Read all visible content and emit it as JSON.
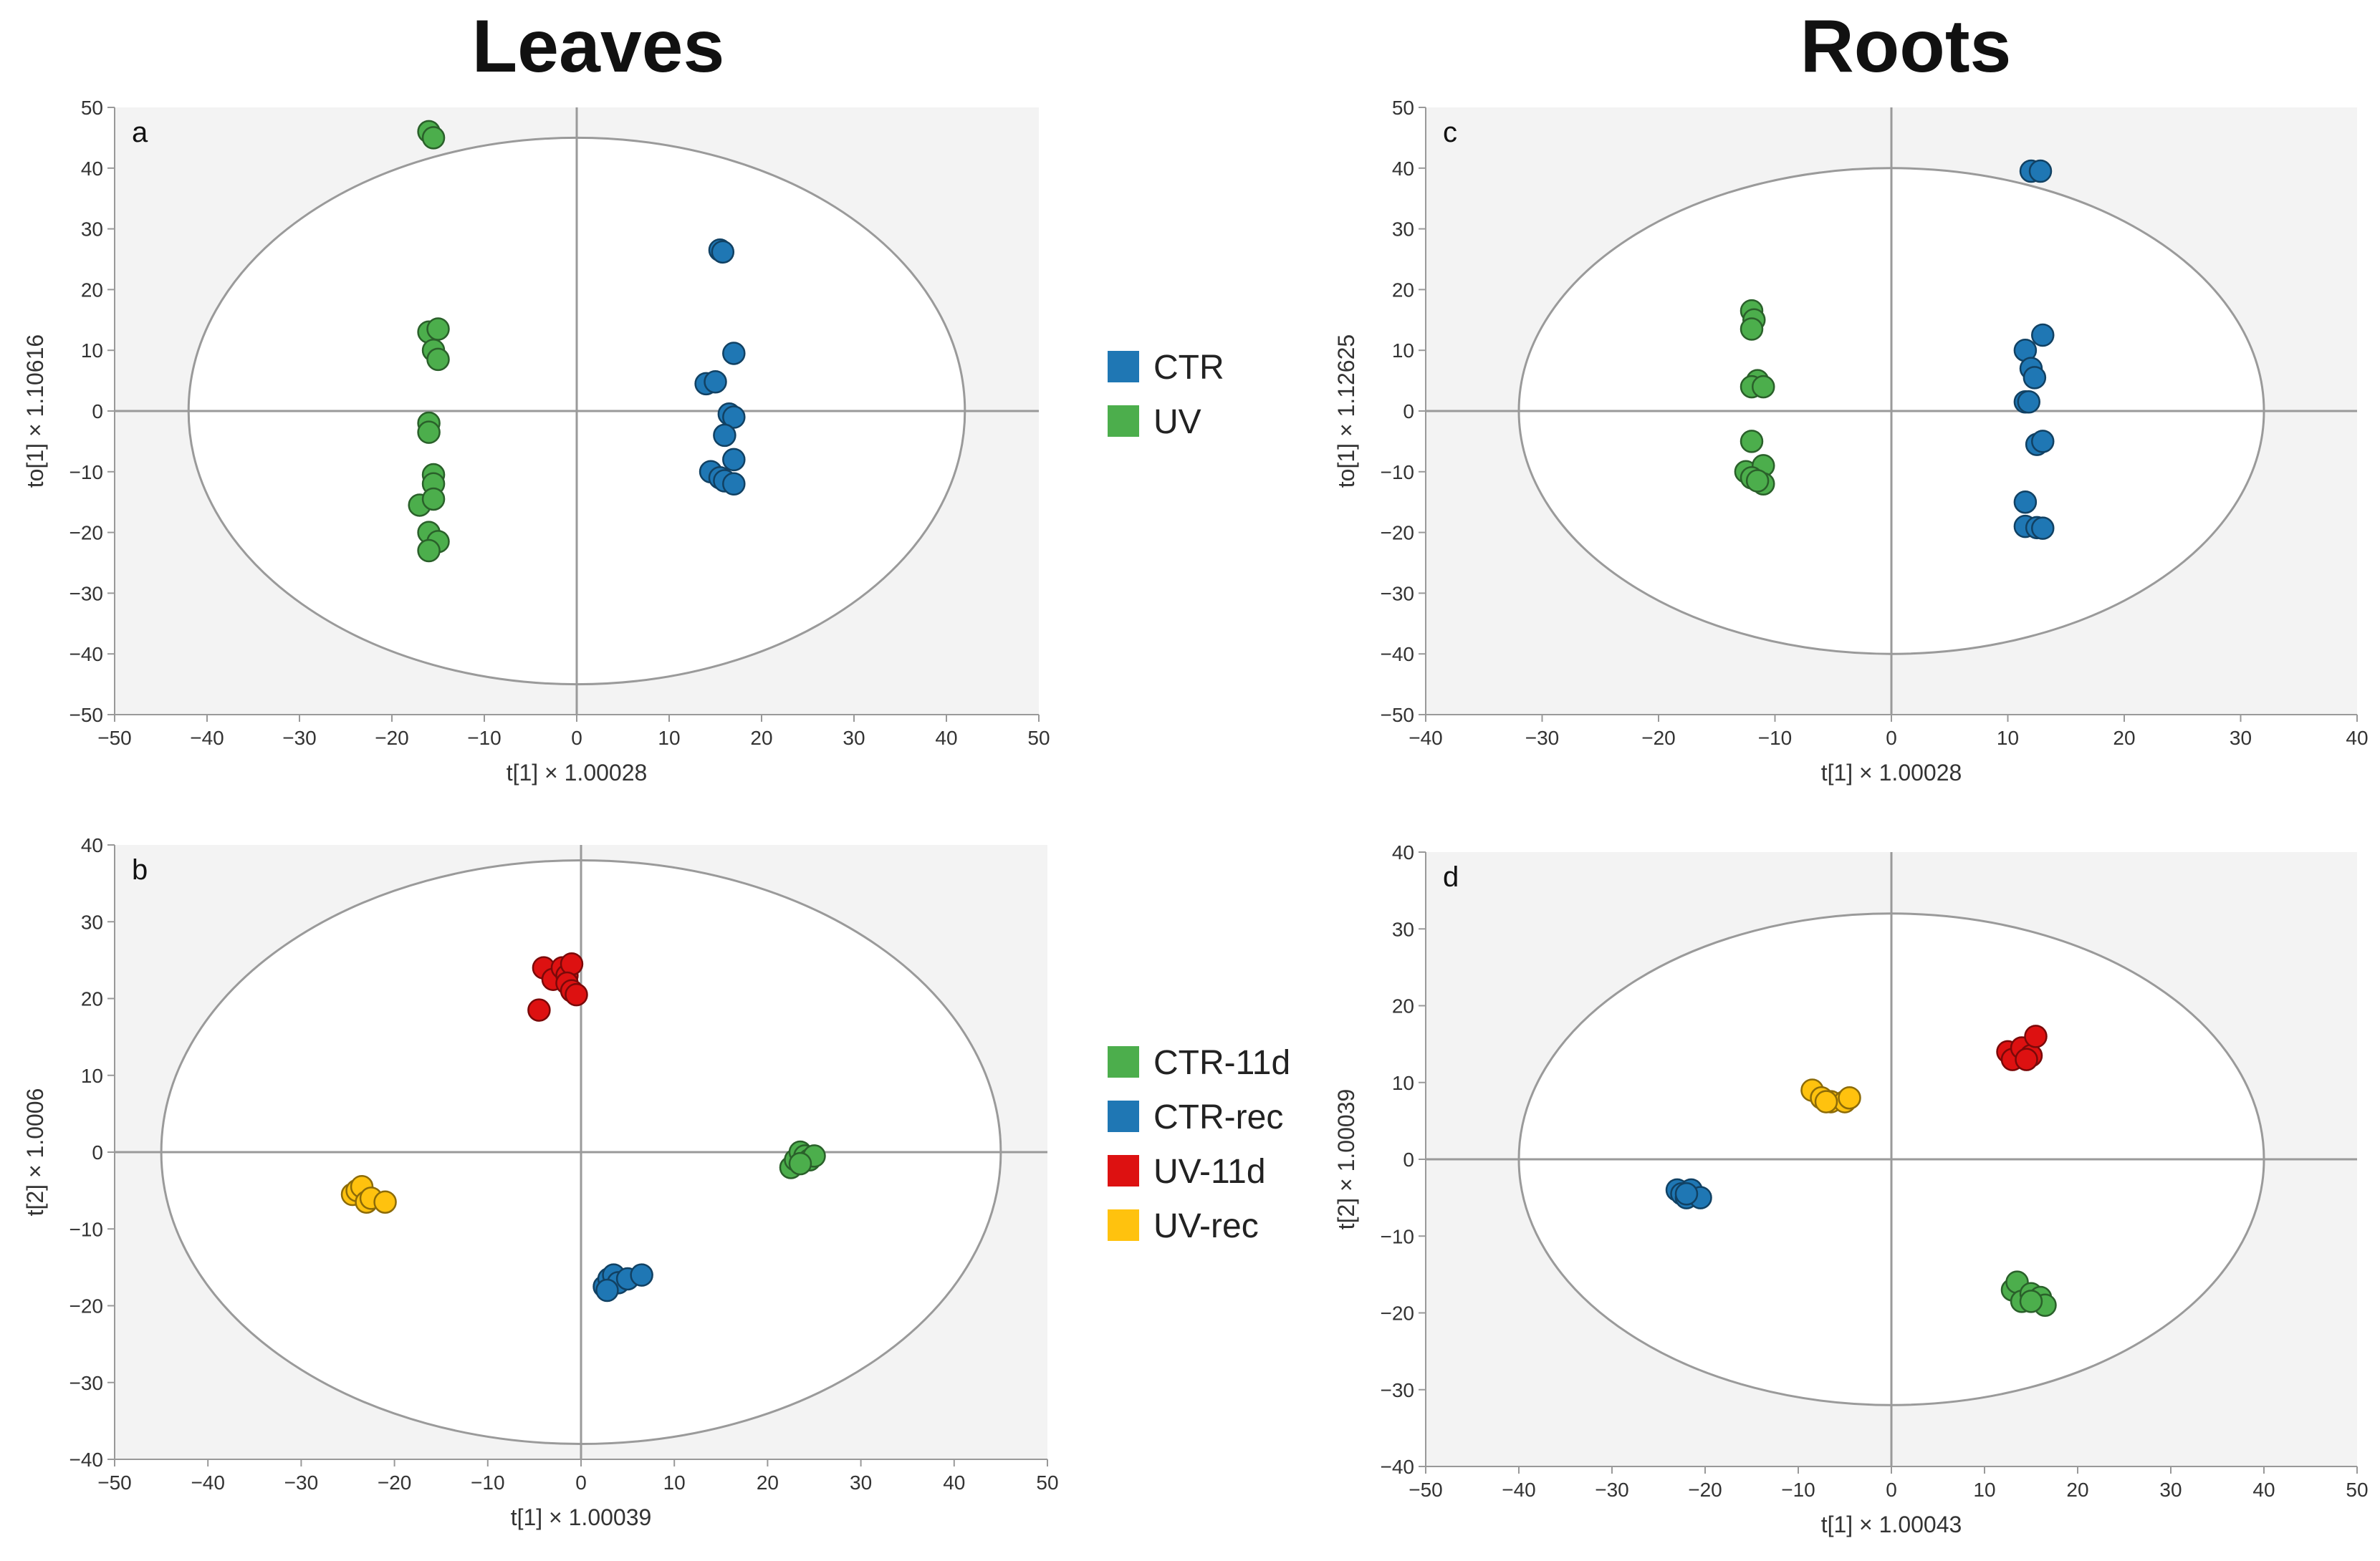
{
  "titles": {
    "left": "Leaves",
    "right": "Roots"
  },
  "legend_top": [
    {
      "label": "CTR",
      "color": "#1f77b4"
    },
    {
      "label": "UV",
      "color": "#4cae4c"
    }
  ],
  "legend_bottom": [
    {
      "label": "CTR-11d",
      "color": "#4cae4c"
    },
    {
      "label": "CTR-rec",
      "color": "#1f77b4"
    },
    {
      "label": "UV-11d",
      "color": "#dd1111"
    },
    {
      "label": "UV-rec",
      "color": "#ffc20e"
    }
  ],
  "chart_data": [
    {
      "panel": "a",
      "type": "scatter",
      "xlabel": "t[1] × 1.00028",
      "ylabel": "to[1] × 1.10616",
      "xlim": [
        -50,
        50
      ],
      "ylim": [
        -50,
        50
      ],
      "xticks": [
        -50,
        -40,
        -30,
        -20,
        -10,
        0,
        10,
        20,
        30,
        40,
        50
      ],
      "yticks": [
        -50,
        -40,
        -30,
        -20,
        -10,
        0,
        10,
        20,
        30,
        40,
        50
      ],
      "ellipse": {
        "rx": 42,
        "ry": 45
      },
      "series": [
        {
          "name": "UV",
          "color": "#4cae4c",
          "points": [
            [
              -16,
              46
            ],
            [
              -15.5,
              45
            ],
            [
              -16,
              13
            ],
            [
              -15,
              13.5
            ],
            [
              -15.5,
              10
            ],
            [
              -15,
              8.5
            ],
            [
              -16,
              -2
            ],
            [
              -16,
              -3.5
            ],
            [
              -15.5,
              -10.5
            ],
            [
              -15.5,
              -12
            ],
            [
              -17,
              -15.5
            ],
            [
              -15.5,
              -14.5
            ],
            [
              -16,
              -20
            ],
            [
              -15,
              -21.5
            ],
            [
              -16,
              -23
            ]
          ]
        },
        {
          "name": "CTR",
          "color": "#1f77b4",
          "points": [
            [
              15.5,
              26.5
            ],
            [
              15.8,
              26.2
            ],
            [
              17,
              9.5
            ],
            [
              14,
              4.5
            ],
            [
              15,
              4.8
            ],
            [
              16.5,
              -0.5
            ],
            [
              17,
              -1
            ],
            [
              16,
              -4
            ],
            [
              17,
              -8
            ],
            [
              14.5,
              -10
            ],
            [
              15.5,
              -11
            ],
            [
              16,
              -11.5
            ],
            [
              17,
              -12
            ]
          ]
        }
      ]
    },
    {
      "panel": "c",
      "type": "scatter",
      "xlabel": "t[1] × 1.00028",
      "ylabel": "to[1] × 1.12625",
      "xlim": [
        -40,
        40
      ],
      "ylim": [
        -50,
        50
      ],
      "xticks": [
        -40,
        -30,
        -20,
        -10,
        0,
        10,
        20,
        30,
        40
      ],
      "yticks": [
        -50,
        -40,
        -30,
        -20,
        -10,
        0,
        10,
        20,
        30,
        40,
        50
      ],
      "ellipse": {
        "rx": 32,
        "ry": 40
      },
      "series": [
        {
          "name": "UV",
          "color": "#4cae4c",
          "points": [
            [
              -12,
              16.5
            ],
            [
              -11.8,
              15
            ],
            [
              -12,
              13.5
            ],
            [
              -11.5,
              5
            ],
            [
              -12,
              4
            ],
            [
              -11,
              4
            ],
            [
              -12,
              -5
            ],
            [
              -12.5,
              -10
            ],
            [
              -11,
              -9
            ],
            [
              -12,
              -11
            ],
            [
              -11,
              -12
            ],
            [
              -11.5,
              -11.5
            ]
          ]
        },
        {
          "name": "CTR",
          "color": "#1f77b4",
          "points": [
            [
              12,
              39.5
            ],
            [
              12.8,
              39.5
            ],
            [
              13,
              12.5
            ],
            [
              11.5,
              10
            ],
            [
              12,
              7
            ],
            [
              12.3,
              5.5
            ],
            [
              11.5,
              1.5
            ],
            [
              11.8,
              1.5
            ],
            [
              12.5,
              -5.5
            ],
            [
              13,
              -5
            ],
            [
              11.5,
              -15
            ],
            [
              11.5,
              -19
            ],
            [
              12.5,
              -19.2
            ],
            [
              13,
              -19.3
            ]
          ]
        }
      ]
    },
    {
      "panel": "b",
      "type": "scatter",
      "xlabel": "t[1] × 1.00039",
      "ylabel": "t[2] × 1.0006",
      "xlim": [
        -50,
        50
      ],
      "ylim": [
        -40,
        40
      ],
      "xticks": [
        -50,
        -40,
        -30,
        -20,
        -10,
        0,
        10,
        20,
        30,
        40,
        50
      ],
      "yticks": [
        -40,
        -30,
        -20,
        -10,
        0,
        10,
        20,
        30,
        40
      ],
      "ellipse": {
        "rx": 45,
        "ry": 38
      },
      "series": [
        {
          "name": "UV-11d",
          "color": "#dd1111",
          "points": [
            [
              -4.5,
              18.5
            ],
            [
              -4,
              24
            ],
            [
              -3,
              22.5
            ],
            [
              -2,
              24
            ],
            [
              -1.5,
              23
            ],
            [
              -1,
              24.5
            ],
            [
              -1.5,
              22
            ],
            [
              -1,
              21
            ],
            [
              -0.5,
              20.5
            ]
          ]
        },
        {
          "name": "CTR-11d",
          "color": "#4cae4c",
          "points": [
            [
              22.5,
              -2
            ],
            [
              23,
              -1
            ],
            [
              23.5,
              0
            ],
            [
              24,
              -0.5
            ],
            [
              24.5,
              -1
            ],
            [
              25,
              -0.5
            ],
            [
              23.5,
              -1.5
            ]
          ]
        },
        {
          "name": "CTR-rec",
          "color": "#1f77b4",
          "points": [
            [
              2.5,
              -17.5
            ],
            [
              3,
              -16.5
            ],
            [
              3.5,
              -16
            ],
            [
              4,
              -17
            ],
            [
              5,
              -16.5
            ],
            [
              6.5,
              -16
            ],
            [
              2.8,
              -18
            ]
          ]
        },
        {
          "name": "UV-rec",
          "color": "#ffc20e",
          "points": [
            [
              -24.5,
              -5.5
            ],
            [
              -24,
              -5
            ],
            [
              -23.5,
              -4.5
            ],
            [
              -23,
              -6.5
            ],
            [
              -22.5,
              -6
            ],
            [
              -21,
              -6.5
            ]
          ]
        }
      ]
    },
    {
      "panel": "d",
      "type": "scatter",
      "xlabel": "t[1] × 1.00043",
      "ylabel": "t[2] × 1.00039",
      "xlim": [
        -50,
        50
      ],
      "ylim": [
        -40,
        40
      ],
      "xticks": [
        -50,
        -40,
        -30,
        -20,
        -10,
        0,
        10,
        20,
        30,
        40,
        50
      ],
      "yticks": [
        -40,
        -30,
        -20,
        -10,
        0,
        10,
        20,
        30,
        40
      ],
      "ellipse": {
        "rx": 40,
        "ry": 32
      },
      "series": [
        {
          "name": "UV-11d",
          "color": "#dd1111",
          "points": [
            [
              12.5,
              14
            ],
            [
              13,
              13
            ],
            [
              14,
              14.5
            ],
            [
              15,
              13.5
            ],
            [
              15.5,
              16
            ],
            [
              14.5,
              13
            ]
          ]
        },
        {
          "name": "UV-rec",
          "color": "#ffc20e",
          "points": [
            [
              -8.5,
              9
            ],
            [
              -7.5,
              8
            ],
            [
              -6.5,
              7.5
            ],
            [
              -5,
              7.5
            ],
            [
              -4.5,
              8
            ],
            [
              -7,
              7.5
            ]
          ]
        },
        {
          "name": "CTR-rec",
          "color": "#1f77b4",
          "points": [
            [
              -23,
              -4
            ],
            [
              -22.5,
              -4.5
            ],
            [
              -22,
              -5
            ],
            [
              -21.5,
              -4
            ],
            [
              -20.5,
              -5
            ],
            [
              -22,
              -4.5
            ]
          ]
        },
        {
          "name": "CTR-11d",
          "color": "#4cae4c",
          "points": [
            [
              13,
              -17
            ],
            [
              13.5,
              -16
            ],
            [
              14,
              -18.5
            ],
            [
              15,
              -17.5
            ],
            [
              16,
              -18
            ],
            [
              16.5,
              -19
            ],
            [
              15,
              -18.5
            ]
          ]
        }
      ]
    }
  ]
}
